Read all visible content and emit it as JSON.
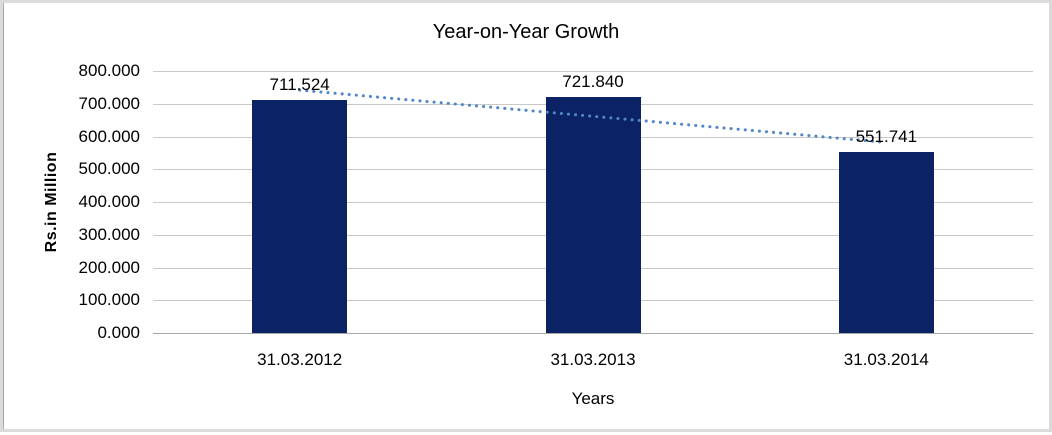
{
  "chart_data": {
    "type": "bar",
    "title": "Year-on-Year Growth",
    "xlabel": "Years",
    "ylabel": "Rs.in Million",
    "categories": [
      "31.03.2012",
      "31.03.2013",
      "31.03.2014"
    ],
    "series": [
      {
        "name": "Rs.in Million",
        "values": [
          711.524,
          721.84,
          551.741
        ],
        "data_labels": [
          "711.524",
          "721.840",
          "551.741"
        ]
      }
    ],
    "ylim": [
      0,
      800
    ],
    "ytick_step": 100,
    "yticks": [
      "800.000",
      "700.000",
      "600.000",
      "500.000",
      "400.000",
      "300.000",
      "200.000",
      "100.000",
      "0.000"
    ],
    "grid": true,
    "legend": "none",
    "trendline": {
      "style": "dotted",
      "start_value": 741.6,
      "end_value": 581.8,
      "color": "#4F86C6"
    },
    "colors": {
      "bar_fill": "#0B2265",
      "gridline": "#C9C9C9",
      "axis_line": "#A6A6A6",
      "text": "#000000",
      "frame_border": "#DBDBDB"
    }
  }
}
